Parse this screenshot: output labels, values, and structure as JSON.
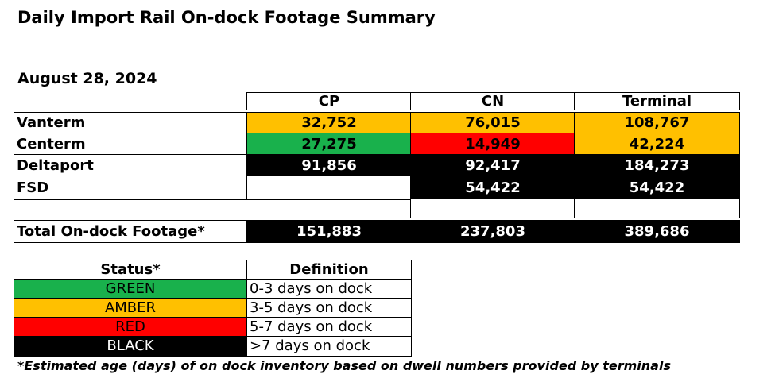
{
  "title": "Daily Import Rail On-dock Footage Summary",
  "date": "August 28, 2024",
  "columns": [
    "CP",
    "CN",
    "Terminal"
  ],
  "rows": [
    {
      "label": "Vanterm",
      "cp": "32,752",
      "cn": "76,015",
      "terminal": "108,767",
      "cp_status": "amber",
      "cn_status": "amber",
      "terminal_status": "amber"
    },
    {
      "label": "Centerm",
      "cp": "27,275",
      "cn": "14,949",
      "terminal": "42,224",
      "cp_status": "green",
      "cn_status": "red",
      "terminal_status": "amber"
    },
    {
      "label": "Deltaport",
      "cp": "91,856",
      "cn": "92,417",
      "terminal": "184,273",
      "cp_status": "black",
      "cn_status": "black",
      "terminal_status": "black"
    },
    {
      "label": "FSD",
      "cp": "",
      "cn": "54,422",
      "terminal": "54,422",
      "cp_status": "none",
      "cn_status": "black",
      "terminal_status": "black"
    }
  ],
  "total": {
    "label": "Total On-dock Footage*",
    "cp": "151,883",
    "cn": "237,803",
    "terminal": "389,686"
  },
  "legend": {
    "headers": [
      "Status*",
      "Definition"
    ],
    "items": [
      {
        "status": "GREEN",
        "definition": "0-3 days on dock",
        "color": "#19b14c"
      },
      {
        "status": "AMBER",
        "definition": "3-5 days on dock",
        "color": "#ffc000"
      },
      {
        "status": "RED",
        "definition": "5-7 days on dock",
        "color": "#ff0000"
      },
      {
        "status": "BLACK",
        "definition": ">7 days on dock",
        "color": "#000000"
      }
    ]
  },
  "footnote": "*Estimated age (days) of on dock inventory based on dwell numbers provided by terminals"
}
